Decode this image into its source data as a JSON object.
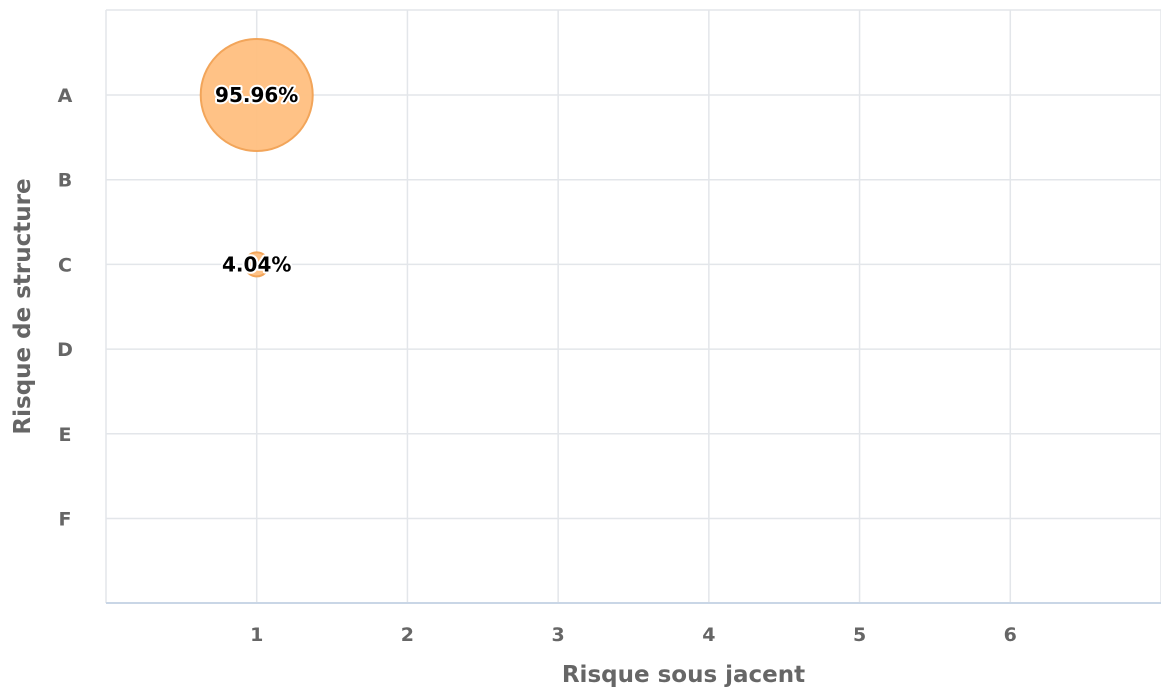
{
  "chart_data": {
    "type": "scatter",
    "variant": "bubble",
    "xlabel": "Risque sous jacent",
    "ylabel": "Risque de structure",
    "x_ticks": [
      "1",
      "2",
      "3",
      "4",
      "5",
      "6"
    ],
    "y_categories": [
      "A",
      "B",
      "C",
      "D",
      "E",
      "F"
    ],
    "xlim": [
      0,
      7
    ],
    "grid": true,
    "bubble_color": "#ffbf80",
    "bubble_border_color": "#f2a55a",
    "points": [
      {
        "x": 1,
        "y": "A",
        "value": 95.96,
        "label": "95.96%"
      },
      {
        "x": 1,
        "y": "C",
        "value": 4.04,
        "label": "4.04%"
      }
    ]
  }
}
